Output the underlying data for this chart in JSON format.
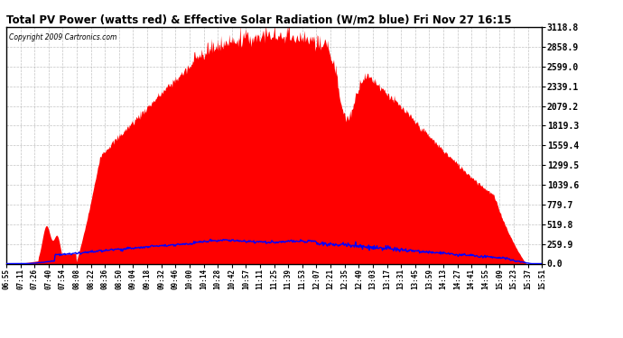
{
  "title": "Total PV Power (watts red) & Effective Solar Radiation (W/m2 blue) Fri Nov 27 16:15",
  "copyright": "Copyright 2009 Cartronics.com",
  "y_max": 3118.8,
  "y_ticks": [
    0.0,
    259.9,
    519.8,
    779.7,
    1039.6,
    1299.5,
    1559.4,
    1819.3,
    2079.2,
    2339.1,
    2599.0,
    2858.9,
    3118.8
  ],
  "x_labels": [
    "06:55",
    "07:11",
    "07:26",
    "07:40",
    "07:54",
    "08:08",
    "08:22",
    "08:36",
    "08:50",
    "09:04",
    "09:18",
    "09:32",
    "09:46",
    "10:00",
    "10:14",
    "10:28",
    "10:42",
    "10:57",
    "11:11",
    "11:25",
    "11:39",
    "11:53",
    "12:07",
    "12:21",
    "12:35",
    "12:49",
    "13:03",
    "13:17",
    "13:31",
    "13:45",
    "13:59",
    "14:13",
    "14:27",
    "14:41",
    "14:55",
    "15:09",
    "15:23",
    "15:37",
    "15:51"
  ],
  "background_color": "#ffffff",
  "plot_bg_color": "#ffffff",
  "grid_color": "#aaaaaa",
  "red_color": "#ff0000",
  "blue_color": "#0000ff",
  "pv_peak": 3118.8,
  "solar_peak": 290.0
}
